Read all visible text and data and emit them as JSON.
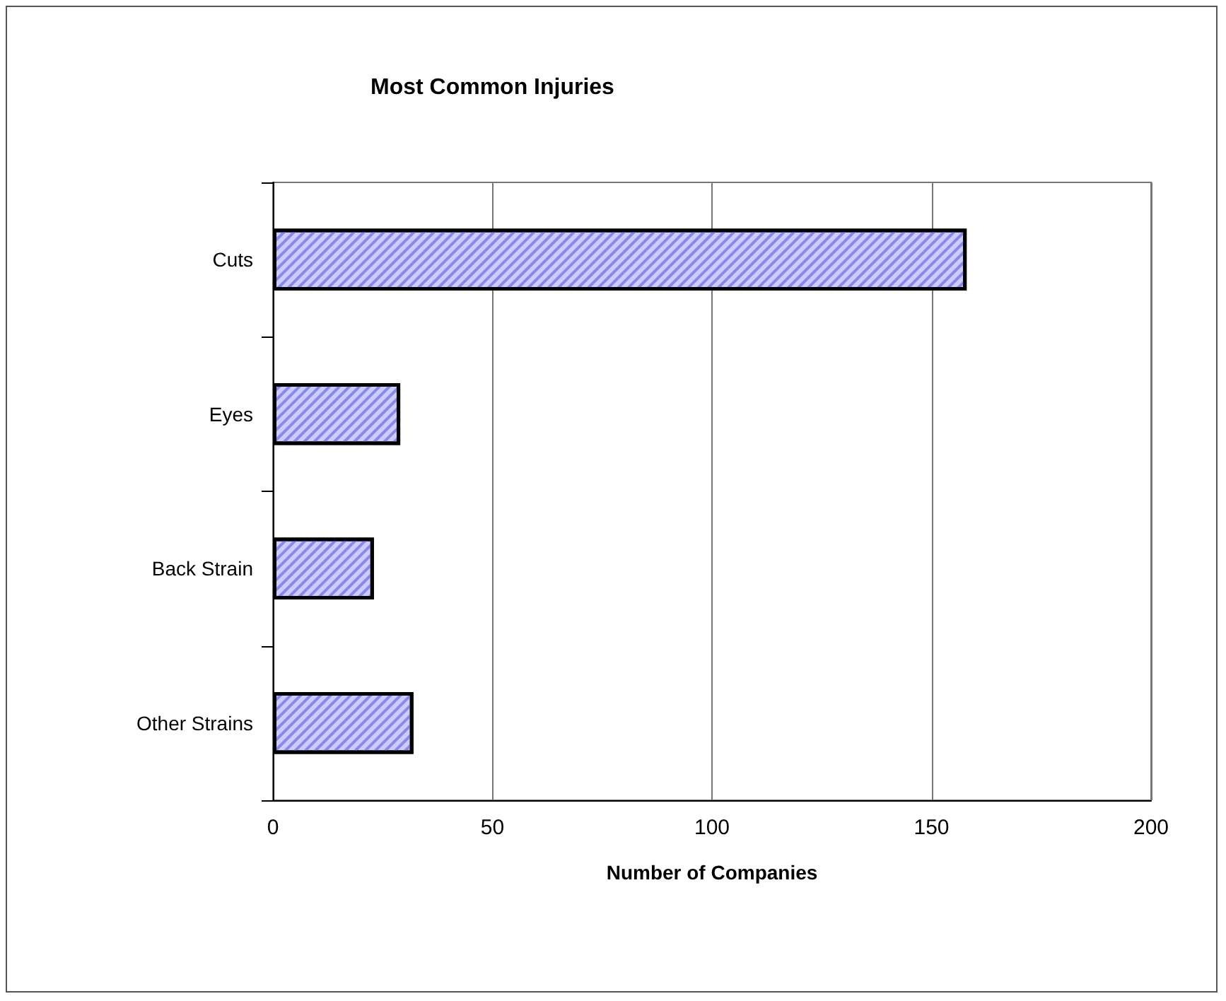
{
  "chart_data": {
    "type": "bar",
    "orientation": "horizontal",
    "title": "Most Common Injuries",
    "xlabel": "Number of Companies",
    "categories": [
      "Cuts",
      "Eyes",
      "Back Strain",
      "Other Strains"
    ],
    "values": [
      158,
      29,
      23,
      32
    ],
    "color": "#ccccff",
    "xlim": [
      0,
      200
    ],
    "xticks": [
      0,
      50,
      100,
      150,
      200
    ],
    "grid": "x"
  }
}
